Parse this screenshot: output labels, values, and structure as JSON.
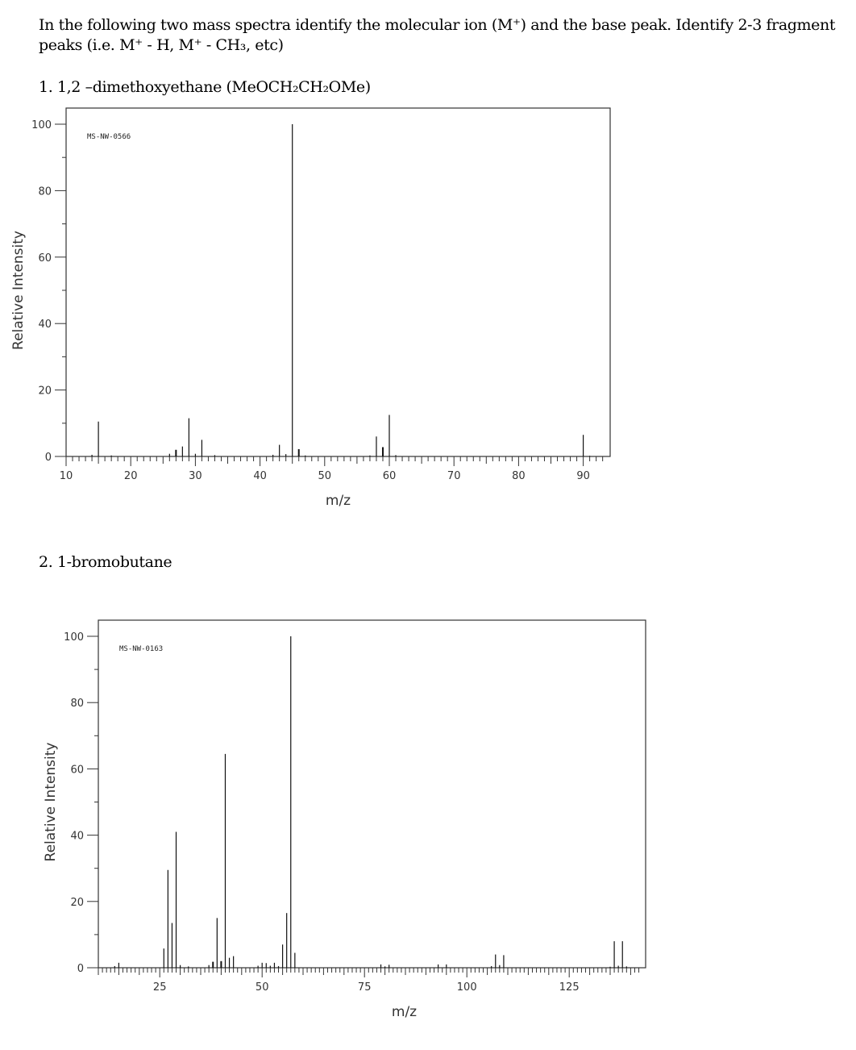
{
  "question": {
    "line1": "In the following two mass spectra identify the molecular ion (M⁺) and the base peak. Identify 2-3 fragment",
    "line2": "peaks (i.e. M⁺ - H, M⁺ - CH₃, etc)",
    "item1": "1. 1,2 –dimethoxyethane (MeOCH₂CH₂OMe)",
    "item2": "2. 1-bromobutane"
  },
  "chart_data": [
    {
      "type": "bar",
      "title": "1,2-dimethoxyethane",
      "code": "MS-NW-0566",
      "xlabel": "m/z",
      "ylabel": "Relative Intensity",
      "xlim": [
        10,
        94
      ],
      "ylim": [
        0,
        100
      ],
      "xticks": [
        10,
        20,
        30,
        40,
        50,
        60,
        70,
        80,
        90
      ],
      "yticks": [
        0,
        20,
        40,
        60,
        80,
        100
      ],
      "peaks": [
        {
          "mz": 14,
          "intensity": 0.5
        },
        {
          "mz": 15,
          "intensity": 10.5
        },
        {
          "mz": 17,
          "intensity": 0.3
        },
        {
          "mz": 26,
          "intensity": 0.8
        },
        {
          "mz": 27,
          "intensity": 2.0
        },
        {
          "mz": 28,
          "intensity": 3.0
        },
        {
          "mz": 29,
          "intensity": 11.5
        },
        {
          "mz": 30,
          "intensity": 0.8
        },
        {
          "mz": 31,
          "intensity": 5.0
        },
        {
          "mz": 33,
          "intensity": 0.4
        },
        {
          "mz": 42,
          "intensity": 0.5
        },
        {
          "mz": 43,
          "intensity": 3.5
        },
        {
          "mz": 44,
          "intensity": 0.7
        },
        {
          "mz": 45,
          "intensity": 100
        },
        {
          "mz": 46,
          "intensity": 2.2
        },
        {
          "mz": 47,
          "intensity": 0.3
        },
        {
          "mz": 57,
          "intensity": 0.3
        },
        {
          "mz": 58,
          "intensity": 6.0
        },
        {
          "mz": 59,
          "intensity": 2.8
        },
        {
          "mz": 60,
          "intensity": 12.5
        },
        {
          "mz": 61,
          "intensity": 0.4
        },
        {
          "mz": 90,
          "intensity": 6.5
        },
        {
          "mz": 91,
          "intensity": 0.2
        }
      ]
    },
    {
      "type": "bar",
      "title": "1-bromobutane",
      "code": "MS-NW-0163",
      "xlabel": "m/z",
      "ylabel": "Relative Intensity",
      "xlim": [
        10,
        143
      ],
      "ylim": [
        0,
        100
      ],
      "xticks": [
        25,
        50,
        75,
        100,
        125
      ],
      "yticks": [
        0,
        20,
        40,
        60,
        80,
        100
      ],
      "peaks": [
        {
          "mz": 14,
          "intensity": 0.5
        },
        {
          "mz": 15,
          "intensity": 1.5
        },
        {
          "mz": 26,
          "intensity": 5.8
        },
        {
          "mz": 27,
          "intensity": 29.5
        },
        {
          "mz": 28,
          "intensity": 13.5
        },
        {
          "mz": 29,
          "intensity": 41.0
        },
        {
          "mz": 30,
          "intensity": 0.8
        },
        {
          "mz": 32,
          "intensity": 0.4
        },
        {
          "mz": 37,
          "intensity": 0.8
        },
        {
          "mz": 38,
          "intensity": 1.8
        },
        {
          "mz": 39,
          "intensity": 15.0
        },
        {
          "mz": 40,
          "intensity": 2.0
        },
        {
          "mz": 41,
          "intensity": 64.5
        },
        {
          "mz": 42,
          "intensity": 3.0
        },
        {
          "mz": 43,
          "intensity": 3.5
        },
        {
          "mz": 49,
          "intensity": 0.6
        },
        {
          "mz": 50,
          "intensity": 1.5
        },
        {
          "mz": 51,
          "intensity": 1.4
        },
        {
          "mz": 52,
          "intensity": 0.6
        },
        {
          "mz": 53,
          "intensity": 1.5
        },
        {
          "mz": 54,
          "intensity": 0.5
        },
        {
          "mz": 55,
          "intensity": 7.0
        },
        {
          "mz": 56,
          "intensity": 16.5
        },
        {
          "mz": 57,
          "intensity": 100
        },
        {
          "mz": 58,
          "intensity": 4.5
        },
        {
          "mz": 79,
          "intensity": 1.0
        },
        {
          "mz": 80,
          "intensity": 0.4
        },
        {
          "mz": 81,
          "intensity": 0.9
        },
        {
          "mz": 93,
          "intensity": 1.0
        },
        {
          "mz": 95,
          "intensity": 1.0
        },
        {
          "mz": 106,
          "intensity": 0.5
        },
        {
          "mz": 107,
          "intensity": 4.0
        },
        {
          "mz": 108,
          "intensity": 0.8
        },
        {
          "mz": 109,
          "intensity": 3.8
        },
        {
          "mz": 135,
          "intensity": 0.3
        },
        {
          "mz": 136,
          "intensity": 8.0
        },
        {
          "mz": 137,
          "intensity": 0.6
        },
        {
          "mz": 138,
          "intensity": 8.0
        },
        {
          "mz": 139,
          "intensity": 0.4
        }
      ]
    }
  ]
}
